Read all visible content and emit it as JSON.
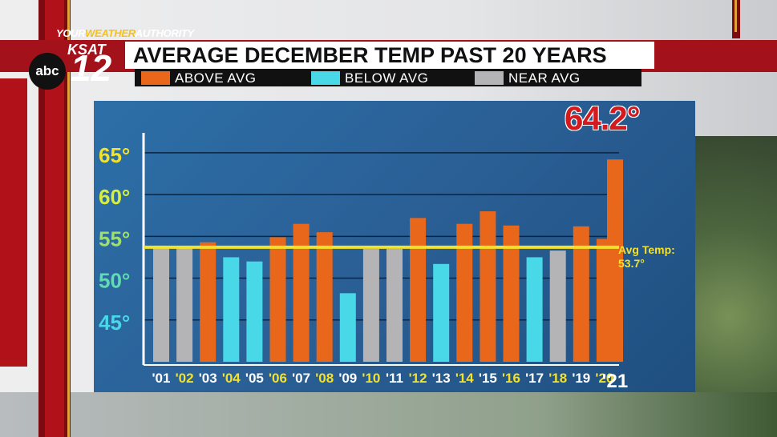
{
  "header": {
    "brand_prefix": "YOUR",
    "brand_weather": "WEATHER",
    "brand_authority": "AUTHORITY",
    "network": "abc",
    "station": "KSAT",
    "channel": "12",
    "title": "AVERAGE DECEMBER TEMP PAST 20 YEARS"
  },
  "legend": [
    {
      "label": "ABOVE AVG",
      "color": "#e8671a"
    },
    {
      "label": "BELOW AVG",
      "color": "#48d8e8"
    },
    {
      "label": "NEAR AVG",
      "color": "#b4b4b6"
    }
  ],
  "highlight_value": "64.2°",
  "avg_line": {
    "label_line1": "Avg Temp:",
    "label_line2": "53.7°",
    "value": 53.7,
    "color": "#f3e12a"
  },
  "chart_data": {
    "type": "bar",
    "categories": [
      "'01",
      "'02",
      "'03",
      "'04",
      "'05",
      "'06",
      "'07",
      "'08",
      "'09",
      "'10",
      "'11",
      "'12",
      "'13",
      "'14",
      "'15",
      "'16",
      "'17",
      "'18",
      "'19",
      "'20",
      "'21"
    ],
    "values": [
      53.6,
      53.6,
      54.3,
      52.5,
      52.0,
      54.9,
      56.5,
      55.5,
      48.2,
      53.5,
      53.5,
      57.2,
      51.7,
      56.5,
      58.0,
      56.3,
      52.5,
      53.3,
      56.2,
      54.7,
      64.2
    ],
    "classes": [
      "near",
      "near",
      "above",
      "below",
      "below",
      "above",
      "above",
      "above",
      "below",
      "near",
      "near",
      "above",
      "below",
      "above",
      "above",
      "above",
      "below",
      "near",
      "above",
      "above",
      "above"
    ],
    "tick_label_colors": [
      "#ffffff",
      "#f3e12a",
      "#ffffff",
      "#f3e12a",
      "#ffffff",
      "#f3e12a",
      "#ffffff",
      "#f3e12a",
      "#ffffff",
      "#f3e12a",
      "#ffffff",
      "#f3e12a",
      "#ffffff",
      "#f3e12a",
      "#ffffff",
      "#f3e12a",
      "#ffffff",
      "#f3e12a",
      "#ffffff",
      "#f3e12a",
      "#ffffff"
    ],
    "y_ticks": [
      65,
      60,
      55,
      50,
      45
    ],
    "y_tick_labels": [
      "65°",
      "60°",
      "55°",
      "50°",
      "45°"
    ],
    "y_tick_colors": [
      "#f3e12a",
      "#d7ef3c",
      "#9fe06a",
      "#5fdcb0",
      "#48d8e8"
    ],
    "ylim": [
      40,
      67
    ],
    "grid": true,
    "title": "",
    "xlabel": "",
    "ylabel": ""
  }
}
